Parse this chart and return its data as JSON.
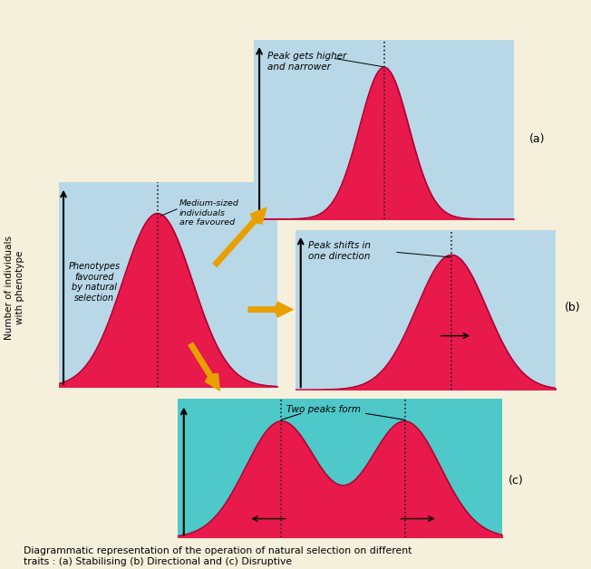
{
  "bg_color": "#f5f0dc",
  "panel_bg_light": "#b8d8e8",
  "panel_bg_teal": "#4ec8c8",
  "curve_color": "#e8194b",
  "curve_edge": "#aa0030",
  "arrow_color": "#e8a000",
  "text_color": "#000000",
  "dashed_color": "#222222",
  "caption": "Diagrammatic representation of the operation of natural selection on different\ntraits : (a) Stabilising (b) Directional and (c) Disruptive",
  "ylabel": "Number of individuals\nwith phenotype",
  "panel_a_label": "Peak gets higher\nand narrower",
  "panel_b_label": "Peak shifts in\none direction",
  "panel_c_label": "Two peaks form",
  "main_label1": "Phenotypes\nfavoured\nby natural\nselection",
  "main_label2": "Medium-sized\nindividuals\nare favoured"
}
